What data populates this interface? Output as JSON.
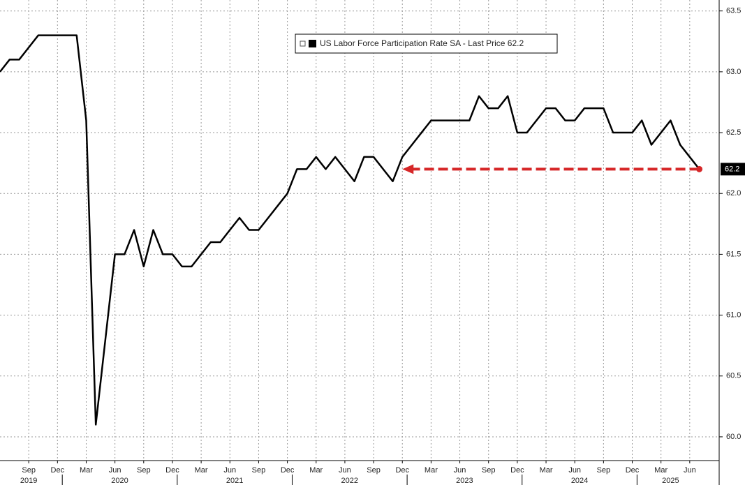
{
  "chart_data": {
    "type": "line",
    "series": [
      {
        "name": "US Labor Force Participation Rate SA - Last Price 62.2",
        "color": "#000000",
        "values": [
          63.0,
          63.1,
          63.1,
          63.2,
          63.3,
          63.3,
          63.3,
          63.3,
          63.3,
          62.6,
          60.1,
          60.8,
          61.5,
          61.5,
          61.7,
          61.4,
          61.7,
          61.5,
          61.5,
          61.4,
          61.4,
          61.5,
          61.6,
          61.6,
          61.7,
          61.8,
          61.7,
          61.7,
          61.8,
          61.9,
          62.0,
          62.2,
          62.2,
          62.3,
          62.2,
          62.3,
          62.2,
          62.1,
          62.3,
          62.3,
          62.2,
          62.1,
          62.3,
          62.4,
          62.5,
          62.6,
          62.6,
          62.6,
          62.6,
          62.6,
          62.8,
          62.7,
          62.7,
          62.8,
          62.5,
          62.5,
          62.6,
          62.7,
          62.7,
          62.6,
          62.6,
          62.7,
          62.7,
          62.7,
          62.5,
          62.5,
          62.5,
          62.6,
          62.4,
          62.5,
          62.6,
          62.4,
          62.3,
          62.2
        ]
      }
    ],
    "x": [
      "2019-06",
      "2019-07",
      "2019-08",
      "2019-09",
      "2019-10",
      "2019-11",
      "2019-12",
      "2020-01",
      "2020-02",
      "2020-03",
      "2020-04",
      "2020-05",
      "2020-06",
      "2020-07",
      "2020-08",
      "2020-09",
      "2020-10",
      "2020-11",
      "2020-12",
      "2021-01",
      "2021-02",
      "2021-03",
      "2021-04",
      "2021-05",
      "2021-06",
      "2021-07",
      "2021-08",
      "2021-09",
      "2021-10",
      "2021-11",
      "2021-12",
      "2022-01",
      "2022-02",
      "2022-03",
      "2022-04",
      "2022-05",
      "2022-06",
      "2022-07",
      "2022-08",
      "2022-09",
      "2022-10",
      "2022-11",
      "2022-12",
      "2023-01",
      "2023-02",
      "2023-03",
      "2023-04",
      "2023-05",
      "2023-06",
      "2023-07",
      "2023-08",
      "2023-09",
      "2023-10",
      "2023-11",
      "2023-12",
      "2024-01",
      "2024-02",
      "2024-03",
      "2024-04",
      "2024-05",
      "2024-06",
      "2024-07",
      "2024-08",
      "2024-09",
      "2024-10",
      "2024-11",
      "2024-12",
      "2025-01",
      "2025-02",
      "2025-03",
      "2025-04",
      "2025-05",
      "2025-06",
      "2025-07"
    ],
    "xticks": [
      {
        "value": "2019-09",
        "label": "Sep"
      },
      {
        "value": "2019-12",
        "label": "Dec"
      },
      {
        "value": "2020-03",
        "label": "Mar"
      },
      {
        "value": "2020-06",
        "label": "Jun"
      },
      {
        "value": "2020-09",
        "label": "Sep"
      },
      {
        "value": "2020-12",
        "label": "Dec"
      },
      {
        "value": "2021-03",
        "label": "Mar"
      },
      {
        "value": "2021-06",
        "label": "Jun"
      },
      {
        "value": "2021-09",
        "label": "Sep"
      },
      {
        "value": "2021-12",
        "label": "Dec"
      },
      {
        "value": "2022-03",
        "label": "Mar"
      },
      {
        "value": "2022-06",
        "label": "Jun"
      },
      {
        "value": "2022-09",
        "label": "Sep"
      },
      {
        "value": "2022-12",
        "label": "Dec"
      },
      {
        "value": "2023-03",
        "label": "Mar"
      },
      {
        "value": "2023-06",
        "label": "Jun"
      },
      {
        "value": "2023-09",
        "label": "Sep"
      },
      {
        "value": "2023-12",
        "label": "Dec"
      },
      {
        "value": "2024-03",
        "label": "Mar"
      },
      {
        "value": "2024-06",
        "label": "Jun"
      },
      {
        "value": "2024-09",
        "label": "Sep"
      },
      {
        "value": "2024-12",
        "label": "Dec"
      },
      {
        "value": "2025-03",
        "label": "Mar"
      },
      {
        "value": "2025-06",
        "label": "Jun"
      }
    ],
    "year_labels": [
      "2019",
      "2020",
      "2021",
      "2022",
      "2023",
      "2024",
      "2025"
    ],
    "ylim": [
      59.69,
      63.59
    ],
    "yticks": [
      {
        "value": 60,
        "label": "60.0"
      },
      60.5,
      {
        "value": 61,
        "label": "61.0"
      },
      61.5,
      {
        "value": 62,
        "label": "62.0"
      },
      62.5,
      {
        "value": 63,
        "label": "63.0"
      },
      63.5
    ],
    "grid": true,
    "last_price": 62.2,
    "annotation_arrow": {
      "value": 62.2,
      "from": "2025-07",
      "to": "2022-12",
      "color": "#d62728"
    }
  }
}
